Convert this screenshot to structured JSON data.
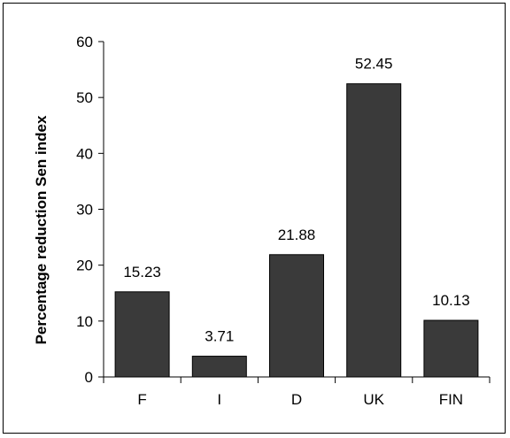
{
  "chart_data": {
    "type": "bar",
    "title": "",
    "xlabel": "",
    "ylabel": "Percentage reduction Sen index",
    "categories": [
      "F",
      "I",
      "D",
      "UK",
      "FIN"
    ],
    "values": [
      15.23,
      3.71,
      21.88,
      52.45,
      10.13
    ],
    "data_labels": [
      "15.23",
      "3.71",
      "21.88",
      "52.45",
      "10.13"
    ],
    "ylim": [
      0,
      60
    ],
    "yticks": [
      "0",
      "10",
      "20",
      "30",
      "40",
      "50",
      "60"
    ],
    "grid": false,
    "legend": "none",
    "bar_color": "#3a3a3a"
  }
}
